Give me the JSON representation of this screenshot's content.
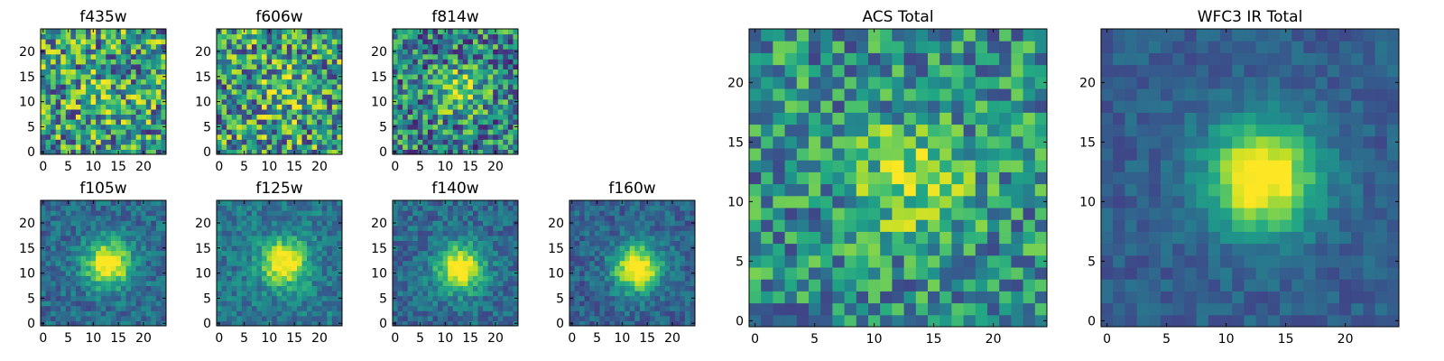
{
  "figure": {
    "background": "#ffffff"
  },
  "chart_data": [
    {
      "type": "heatmap",
      "title": "f435w",
      "colormap": "viridis",
      "grid_size": 25,
      "blob": {
        "x": 12,
        "y": 11,
        "strength": 0.15
      },
      "noise": 0.85,
      "base": 0.55,
      "seed": 11,
      "xticks": [
        "0",
        "5",
        "10",
        "15",
        "20"
      ],
      "yticks": [
        "0",
        "5",
        "10",
        "15",
        "20"
      ],
      "xlim": [
        0,
        25
      ],
      "ylim": [
        0,
        25
      ]
    },
    {
      "type": "heatmap",
      "title": "f606w",
      "colormap": "viridis",
      "grid_size": 25,
      "blob": {
        "x": 13,
        "y": 12,
        "strength": 0.2
      },
      "noise": 0.85,
      "base": 0.55,
      "seed": 23,
      "xticks": [
        "0",
        "5",
        "10",
        "15",
        "20"
      ],
      "yticks": [
        "0",
        "5",
        "10",
        "15",
        "20"
      ],
      "xlim": [
        0,
        25
      ],
      "ylim": [
        0,
        25
      ]
    },
    {
      "type": "heatmap",
      "title": "f814w",
      "colormap": "viridis",
      "grid_size": 25,
      "blob": {
        "x": 13,
        "y": 12,
        "strength": 0.4
      },
      "noise": 0.75,
      "base": 0.45,
      "seed": 37,
      "xticks": [
        "0",
        "5",
        "10",
        "15",
        "20"
      ],
      "yticks": [
        "0",
        "5",
        "10",
        "15",
        "20"
      ],
      "xlim": [
        0,
        25
      ],
      "ylim": [
        0,
        25
      ]
    },
    {
      "type": "heatmap",
      "title": "f105w",
      "colormap": "viridis",
      "grid_size": 25,
      "blob": {
        "x": 13,
        "y": 12,
        "strength": 0.75
      },
      "noise": 0.3,
      "base": 0.35,
      "seed": 41,
      "xticks": [
        "0",
        "5",
        "10",
        "15",
        "20"
      ],
      "yticks": [
        "0",
        "5",
        "10",
        "15",
        "20"
      ],
      "xlim": [
        0,
        25
      ],
      "ylim": [
        0,
        25
      ]
    },
    {
      "type": "heatmap",
      "title": "f125w",
      "colormap": "viridis",
      "grid_size": 25,
      "blob": {
        "x": 13,
        "y": 12,
        "strength": 0.7
      },
      "noise": 0.3,
      "base": 0.4,
      "seed": 53,
      "xticks": [
        "0",
        "5",
        "10",
        "15",
        "20"
      ],
      "yticks": [
        "0",
        "5",
        "10",
        "15",
        "20"
      ],
      "xlim": [
        0,
        25
      ],
      "ylim": [
        0,
        25
      ]
    },
    {
      "type": "heatmap",
      "title": "f140w",
      "colormap": "viridis",
      "grid_size": 25,
      "blob": {
        "x": 13,
        "y": 11,
        "strength": 0.75
      },
      "noise": 0.3,
      "base": 0.35,
      "seed": 67,
      "xticks": [
        "0",
        "5",
        "10",
        "15",
        "20"
      ],
      "yticks": [
        "0",
        "5",
        "10",
        "15",
        "20"
      ],
      "xlim": [
        0,
        25
      ],
      "ylim": [
        0,
        25
      ]
    },
    {
      "type": "heatmap",
      "title": "f160w",
      "colormap": "viridis",
      "grid_size": 25,
      "blob": {
        "x": 13,
        "y": 11,
        "strength": 0.8
      },
      "noise": 0.28,
      "base": 0.32,
      "seed": 79,
      "xticks": [
        "0",
        "5",
        "10",
        "15",
        "20"
      ],
      "yticks": [
        "0",
        "5",
        "10",
        "15",
        "20"
      ],
      "xlim": [
        0,
        25
      ],
      "ylim": [
        0,
        25
      ]
    },
    {
      "type": "heatmap",
      "title": "ACS Total",
      "colormap": "viridis",
      "grid_size": 25,
      "blob": {
        "x": 13,
        "y": 12,
        "strength": 0.35
      },
      "noise": 0.6,
      "base": 0.5,
      "seed": 97,
      "xticks": [
        "0",
        "5",
        "10",
        "15",
        "20"
      ],
      "yticks": [
        "0",
        "5",
        "10",
        "15",
        "20"
      ],
      "xlim": [
        0,
        25
      ],
      "ylim": [
        0,
        25
      ]
    },
    {
      "type": "heatmap",
      "title": "WFC3 IR Total",
      "colormap": "viridis",
      "grid_size": 25,
      "blob": {
        "x": 13,
        "y": 12,
        "strength": 0.8
      },
      "noise": 0.18,
      "base": 0.3,
      "seed": 113,
      "xticks": [
        "0",
        "5",
        "10",
        "15",
        "20"
      ],
      "yticks": [
        "0",
        "5",
        "10",
        "15",
        "20"
      ],
      "xlim": [
        0,
        25
      ],
      "ylim": [
        0,
        25
      ]
    }
  ]
}
